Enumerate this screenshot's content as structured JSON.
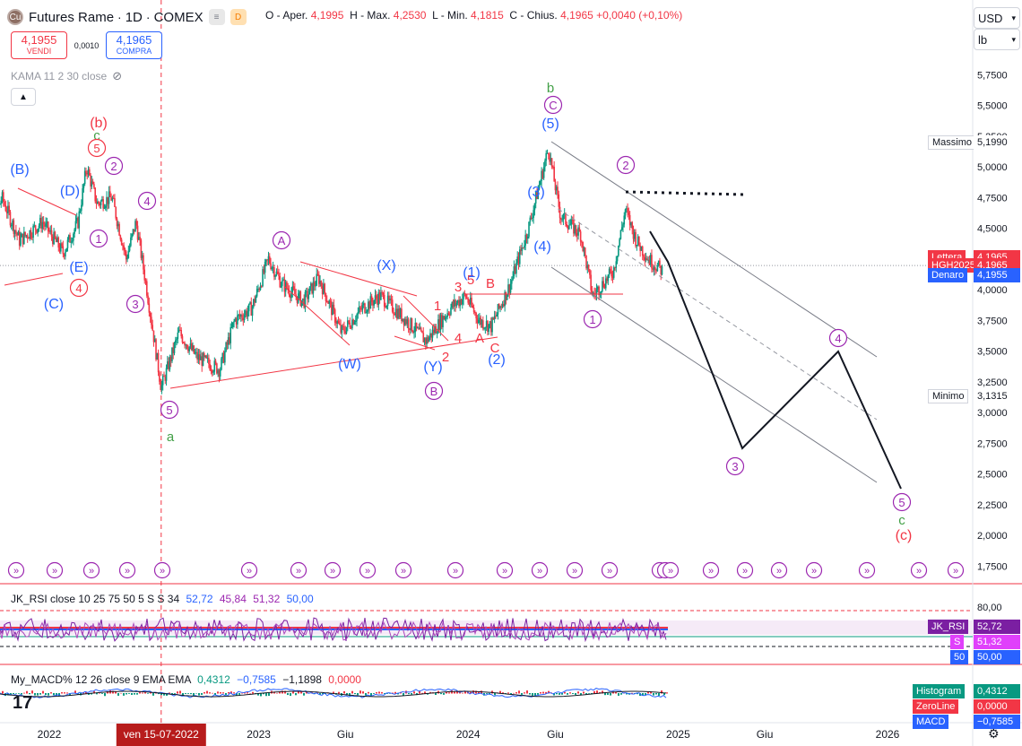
{
  "header": {
    "logo_icon": "copper-coin-icon",
    "symbol": "Futures Rame",
    "interval": "1D",
    "exchange": "COMEX",
    "badge_grey": "≡",
    "badge_orange": "D",
    "ohlc": {
      "open_label": "O - Aper.",
      "open": "4,1995",
      "high_label": "H - Max.",
      "high": "4,2530",
      "low_label": "L - Min.",
      "low": "4,1815",
      "close_label": "C - Chius.",
      "close": "4,1965",
      "change": "+0,0040 (+0,10%)"
    }
  },
  "trade": {
    "sell_value": "4,1955",
    "sell_label": "VENDI",
    "spread": "0,0010",
    "buy_value": "4,1965",
    "buy_label": "COMPRA"
  },
  "indicator_kama": "KAMA 11 2 30 close",
  "currency": "USD",
  "unit": "lb",
  "colors": {
    "up": "#089981",
    "down": "#f23645",
    "purple": "#9c27b0",
    "blue": "#2962ff",
    "green": "#43a047",
    "red": "#f23645",
    "dark": "#131722"
  },
  "chart_data": [
    {
      "type": "candlestick",
      "title": "Futures Rame · 1D · COMEX",
      "x_ticks": [
        "2022",
        "ven 15-07-2022",
        "2023",
        "Giu",
        "2024",
        "Giu",
        "2025",
        "Giu",
        "2026"
      ],
      "y_ticks": [
        "5,7500",
        "5,5000",
        "5,2500",
        "5,0000",
        "4,7500",
        "4,5000",
        "4,2500",
        "4,0000",
        "3,7500",
        "3,5000",
        "3,2500",
        "3,0000",
        "2,7500",
        "2,5000",
        "2,2500",
        "2,0000",
        "1,7500"
      ],
      "ylim": [
        1.65,
        5.95
      ],
      "highlighted_date": "ven 15-07-2022",
      "price_labels": [
        {
          "label": "Massimo",
          "value": "5,1990",
          "price": 5.199,
          "style": "plain"
        },
        {
          "label": "Lettera",
          "value": "4,1965",
          "price": 4.26,
          "style": "red"
        },
        {
          "label": "HGH2025",
          "value": "4,1965",
          "price": 4.1965,
          "style": "red"
        },
        {
          "label": "Denaro",
          "value": "4,1955",
          "price": 4.12,
          "style": "blue"
        },
        {
          "label": "Minimo",
          "value": "3,1315",
          "price": 3.1315,
          "style": "plain"
        }
      ],
      "series": [
        {
          "name": "",
          "points": [
            [
              "2021-09-01",
              4.15
            ],
            [
              "2021-10-10",
              4.75
            ],
            [
              "2021-11-10",
              4.4
            ],
            [
              "2021-12-20",
              4.55
            ],
            [
              "2022-01-25",
              4.3
            ],
            [
              "2022-02-20",
              4.55
            ],
            [
              "2022-03-07",
              5.0
            ],
            [
              "2022-03-25",
              4.7
            ],
            [
              "2022-04-20",
              4.75
            ],
            [
              "2022-05-15",
              4.25
            ],
            [
              "2022-06-01",
              4.55
            ],
            [
              "2022-06-20",
              4.0
            ],
            [
              "2022-07-15",
              3.2
            ],
            [
              "2022-08-15",
              3.65
            ],
            [
              "2022-09-15",
              3.45
            ],
            [
              "2022-10-25",
              3.35
            ],
            [
              "2022-11-20",
              3.75
            ],
            [
              "2022-12-20",
              3.85
            ],
            [
              "2023-01-18",
              4.25
            ],
            [
              "2023-02-10",
              4.05
            ],
            [
              "2023-03-20",
              3.9
            ],
            [
              "2023-04-15",
              4.1
            ],
            [
              "2023-05-25",
              3.65
            ],
            [
              "2023-07-01",
              3.85
            ],
            [
              "2023-08-01",
              3.95
            ],
            [
              "2023-09-15",
              3.75
            ],
            [
              "2023-10-20",
              3.58
            ],
            [
              "2023-12-01",
              3.85
            ],
            [
              "2023-12-27",
              3.95
            ],
            [
              "2024-01-20",
              3.75
            ],
            [
              "2024-02-10",
              3.7
            ],
            [
              "2024-03-15",
              4.05
            ],
            [
              "2024-04-15",
              4.5
            ],
            [
              "2024-05-20",
              5.15
            ],
            [
              "2024-06-10",
              4.6
            ],
            [
              "2024-07-15",
              4.45
            ],
            [
              "2024-08-05",
              3.95
            ],
            [
              "2024-09-10",
              4.15
            ],
            [
              "2024-10-01",
              4.65
            ],
            [
              "2024-10-20",
              4.4
            ],
            [
              "2024-11-10",
              4.25
            ],
            [
              "2024-12-05",
              4.15
            ]
          ]
        }
      ],
      "wave_labels": [
        {
          "text": "(B)",
          "color": "blue"
        },
        {
          "text": "(D)",
          "color": "blue"
        },
        {
          "text": "(E)",
          "color": "blue"
        },
        {
          "text": "(C)",
          "color": "blue"
        },
        {
          "text": "4",
          "color": "red",
          "circled": true
        },
        {
          "text": "1",
          "color": "purple",
          "circled": true
        },
        {
          "text": "(b)",
          "color": "red"
        },
        {
          "text": "c",
          "color": "green"
        },
        {
          "text": "5",
          "color": "red",
          "circled": true
        },
        {
          "text": "2",
          "color": "purple",
          "circled": true
        },
        {
          "text": "4",
          "color": "purple",
          "circled": true
        },
        {
          "text": "3",
          "color": "purple",
          "circled": true
        },
        {
          "text": "5",
          "color": "purple",
          "circled": true
        },
        {
          "text": "a",
          "color": "green"
        },
        {
          "text": "A",
          "color": "purple",
          "circled": true
        },
        {
          "text": "(W)",
          "color": "blue"
        },
        {
          "text": "(X)",
          "color": "blue"
        },
        {
          "text": "(Y)",
          "color": "blue"
        },
        {
          "text": "B",
          "color": "purple",
          "circled": true
        },
        {
          "text": "1",
          "color": "red"
        },
        {
          "text": "2",
          "color": "red"
        },
        {
          "text": "3",
          "color": "red"
        },
        {
          "text": "4",
          "color": "red"
        },
        {
          "text": "5",
          "color": "red"
        },
        {
          "text": "A",
          "color": "red"
        },
        {
          "text": "B",
          "color": "red"
        },
        {
          "text": "C",
          "color": "red"
        },
        {
          "text": "(1)",
          "color": "blue"
        },
        {
          "text": "(2)",
          "color": "blue"
        },
        {
          "text": "(3)",
          "color": "blue"
        },
        {
          "text": "(4)",
          "color": "blue"
        },
        {
          "text": "b",
          "color": "green"
        },
        {
          "text": "C",
          "color": "purple",
          "circled": true
        },
        {
          "text": "(5)",
          "color": "blue"
        },
        {
          "text": "2",
          "color": "purple",
          "circled": true
        },
        {
          "text": "1",
          "color": "purple",
          "circled": true
        },
        {
          "text": "3",
          "color": "purple",
          "circled": true
        },
        {
          "text": "4",
          "color": "purple",
          "circled": true
        },
        {
          "text": "5",
          "color": "purple",
          "circled": true
        },
        {
          "text": "c",
          "color": "green"
        },
        {
          "text": "(c)",
          "color": "red"
        }
      ],
      "event_marker_count": 25
    },
    {
      "type": "line",
      "title": "JK_RSI close 10 25 75 50 5 S S 34",
      "values": [
        "52,72",
        "45,84",
        "51,32",
        "50,00"
      ],
      "y_ticks": [
        "80,00"
      ],
      "price_labels": [
        {
          "label": "JK_RSI",
          "value": "52,72"
        },
        {
          "label": "S",
          "value": "51,32"
        },
        {
          "label": "50",
          "value": "50,00"
        }
      ]
    },
    {
      "type": "line",
      "title": "My_MACD% 12 26 close 9 EMA EMA",
      "values": [
        "0,4312",
        "−0,7585",
        "−1,1898",
        "0,0000"
      ],
      "price_labels": [
        {
          "label": "Histogram",
          "value": "0,4312"
        },
        {
          "label": "ZeroLine",
          "value": "0,0000"
        },
        {
          "label": "MACD",
          "value": "−0,7585"
        }
      ]
    }
  ]
}
